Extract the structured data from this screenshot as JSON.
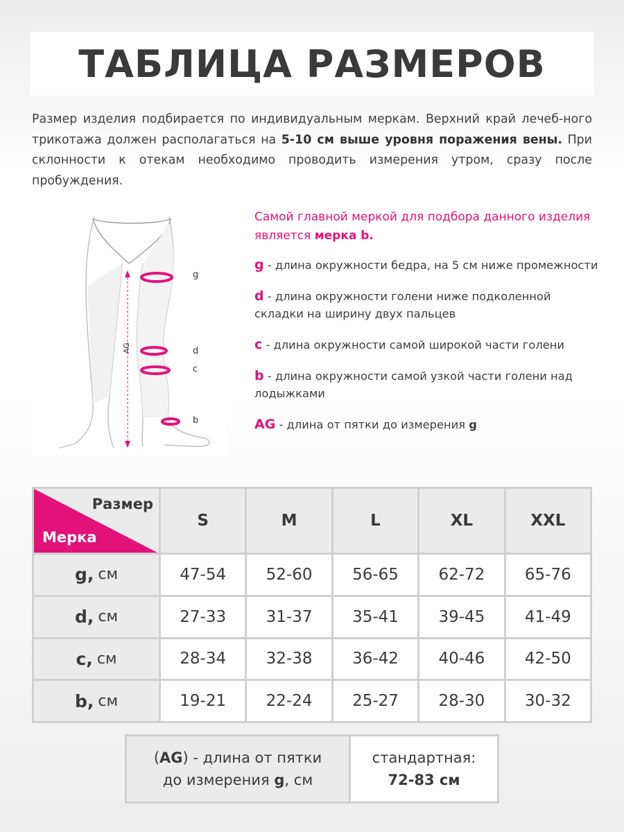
{
  "title": "ТАБЛИЦА РАЗМЕРОВ",
  "intro": {
    "part1": "Размер изделия подбирается по индивидуальным меркам. Верхний край лечеб-ного трикотажа должен располагаться на ",
    "bold": "5-10 см выше уровня поражения вены.",
    "part2": " При склонности к отекам необходимо проводить измерения утром, сразу после пробуждения."
  },
  "diagram": {
    "labels": {
      "g": "g",
      "d": "d",
      "c": "c",
      "b": "b",
      "ag": "AG"
    },
    "accent_color": "#e2127a"
  },
  "legend": {
    "lead_part1": "Самой главной меркой для подбора данного изделия является ",
    "lead_bold": "мерка b.",
    "items": [
      {
        "key": "g",
        "text": " - длина окружности бедра, на 5 см ниже промежности"
      },
      {
        "key": "d",
        "text": " - длина окружности голени ниже подколенной складки на ширину двух пальцев"
      },
      {
        "key": "c",
        "text": " - длина окружности самой широкой части голени"
      },
      {
        "key": "b",
        "text": " - длина окружности самой узкой части голени над лодыжками"
      },
      {
        "key": "AG",
        "text": " - длина от пятки до измерения ",
        "tail": "g"
      }
    ]
  },
  "table": {
    "corner_top": "Размер",
    "corner_bottom": "Мерка",
    "sizes": [
      "S",
      "M",
      "L",
      "XL",
      "XXL"
    ],
    "unit": "см",
    "rows": [
      {
        "key": "g,",
        "values": [
          "47-54",
          "52-60",
          "56-65",
          "62-72",
          "65-76"
        ]
      },
      {
        "key": "d,",
        "values": [
          "27-33",
          "31-37",
          "35-41",
          "39-45",
          "41-49"
        ]
      },
      {
        "key": "c,",
        "values": [
          "28-34",
          "32-38",
          "36-42",
          "40-46",
          "42-50"
        ]
      },
      {
        "key": "b,",
        "values": [
          "19-21",
          "22-24",
          "25-27",
          "28-30",
          "30-32"
        ]
      }
    ]
  },
  "ag_note": {
    "open": "(",
    "key": "AG",
    "line1_rest": ") - длина от пятки",
    "line2_start": "до измерения ",
    "line2_key": "g",
    "line2_end": ", см",
    "value_label": "стандартная:",
    "value": "72-83 см"
  },
  "colors": {
    "accent": "#e2127a",
    "text": "#3a3a3a",
    "header_bg": "#ebebeb"
  }
}
